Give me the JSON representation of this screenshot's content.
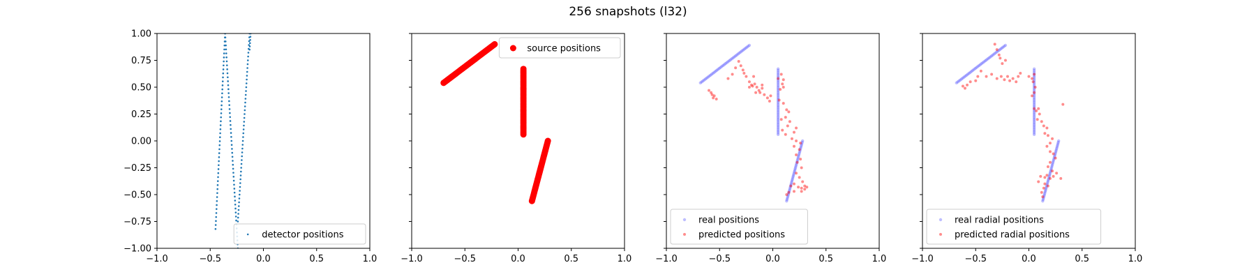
{
  "figure_title": "256 snapshots (l32)",
  "chart_data": [
    {
      "type": "scatter",
      "xlim": [
        -1.0,
        1.0
      ],
      "ylim": [
        -1.0,
        1.0
      ],
      "xticks": [
        "−1.0",
        "−0.5",
        "0.0",
        "0.5",
        "1.0"
      ],
      "xtick_values": [
        -1.0,
        -0.5,
        0.0,
        0.5,
        1.0
      ],
      "yticks": [
        "1.00",
        "0.75",
        "0.50",
        "0.25",
        "0.00",
        "−0.25",
        "−0.50",
        "−0.75",
        "−1.00"
      ],
      "ytick_values": [
        1.0,
        0.75,
        0.5,
        0.25,
        0.0,
        -0.25,
        -0.5,
        -0.75,
        -1.0
      ],
      "show_yticklabels": true,
      "legend_location": "lower-right",
      "series": [
        {
          "name": "detector positions",
          "color": "#1f77b4",
          "opacity": 1.0,
          "marker_radius": 1.3,
          "segments": [
            {
              "x0": -0.45,
              "y0": -0.82,
              "x1": -0.36,
              "y1": 1.0,
              "n": 50
            },
            {
              "x0": -0.36,
              "y0": 1.0,
              "x1": -0.24,
              "y1": -1.0,
              "n": 55
            },
            {
              "x0": -0.24,
              "y0": -0.75,
              "x1": -0.13,
              "y1": 1.0,
              "n": 50
            },
            {
              "x0": -0.13,
              "y0": 0.85,
              "x1": -0.12,
              "y1": 1.0,
              "n": 6
            }
          ]
        }
      ]
    },
    {
      "type": "scatter",
      "xlim": [
        -1.0,
        1.0
      ],
      "ylim": [
        -1.0,
        1.0
      ],
      "xticks": [
        "−1.0",
        "−0.5",
        "0.0",
        "0.5",
        "1.0"
      ],
      "xtick_values": [
        -1.0,
        -0.5,
        0.0,
        0.5,
        1.0
      ],
      "yticks": [],
      "ytick_values": [
        1.0,
        0.75,
        0.5,
        0.25,
        0.0,
        -0.25,
        -0.5,
        -0.75,
        -1.0
      ],
      "show_yticklabels": false,
      "legend_location": "upper-right",
      "series": [
        {
          "name": "source positions",
          "color": "#ff0000",
          "opacity": 1.0,
          "marker_radius": 4.5,
          "segments": [
            {
              "x0": -0.7,
              "y0": 0.54,
              "x1": -0.22,
              "y1": 0.9,
              "n": 50
            },
            {
              "x0": 0.05,
              "y0": 0.67,
              "x1": 0.05,
              "y1": 0.06,
              "n": 45
            },
            {
              "x0": 0.13,
              "y0": -0.56,
              "x1": 0.28,
              "y1": 0.0,
              "n": 45
            }
          ]
        }
      ]
    },
    {
      "type": "scatter",
      "xlim": [
        -1.0,
        1.0
      ],
      "ylim": [
        -1.0,
        1.0
      ],
      "xticks": [
        "−1.0",
        "−0.5",
        "0.0",
        "0.5",
        "1.0"
      ],
      "xtick_values": [
        -1.0,
        -0.5,
        0.0,
        0.5,
        1.0
      ],
      "yticks": [],
      "ytick_values": [
        1.0,
        0.75,
        0.5,
        0.25,
        0.0,
        -0.25,
        -0.5,
        -0.75,
        -1.0
      ],
      "show_yticklabels": false,
      "legend_location": "lower-left",
      "series": [
        {
          "name": "real positions",
          "color": "#4444ff",
          "opacity": 0.35,
          "marker_radius": 2.2,
          "segments": [
            {
              "x0": -0.68,
              "y0": 0.54,
              "x1": -0.22,
              "y1": 0.89,
              "n": 40
            },
            {
              "x0": 0.05,
              "y0": 0.67,
              "x1": 0.05,
              "y1": 0.06,
              "n": 40
            },
            {
              "x0": 0.13,
              "y0": -0.56,
              "x1": 0.28,
              "y1": 0.0,
              "n": 40
            }
          ]
        },
        {
          "name": "predicted positions",
          "color": "#ff0000",
          "opacity": 0.45,
          "marker_radius": 2.0,
          "points": [
            [
              -0.6,
              0.47
            ],
            [
              -0.58,
              0.45
            ],
            [
              -0.55,
              0.42
            ],
            [
              -0.56,
              0.4
            ],
            [
              -0.53,
              0.39
            ],
            [
              -0.57,
              0.43
            ],
            [
              -0.42,
              0.58
            ],
            [
              -0.38,
              0.62
            ],
            [
              -0.35,
              0.68
            ],
            [
              -0.32,
              0.74
            ],
            [
              -0.3,
              0.7
            ],
            [
              -0.28,
              0.66
            ],
            [
              -0.27,
              0.63
            ],
            [
              -0.25,
              0.6
            ],
            [
              -0.22,
              0.55
            ],
            [
              -0.2,
              0.52
            ],
            [
              -0.22,
              0.5
            ],
            [
              -0.19,
              0.51
            ],
            [
              -0.17,
              0.53
            ],
            [
              -0.15,
              0.5
            ],
            [
              -0.13,
              0.47
            ],
            [
              -0.1,
              0.49
            ],
            [
              -0.12,
              0.45
            ],
            [
              -0.08,
              0.43
            ],
            [
              -0.05,
              0.4
            ],
            [
              -0.03,
              0.37
            ],
            [
              -0.02,
              0.42
            ],
            [
              -0.18,
              0.6
            ],
            [
              -0.16,
              0.45
            ],
            [
              -0.1,
              0.52
            ],
            [
              0.05,
              0.58
            ],
            [
              0.08,
              0.62
            ],
            [
              0.1,
              0.57
            ],
            [
              0.1,
              0.5
            ],
            [
              0.09,
              0.53
            ],
            [
              0.07,
              0.48
            ],
            [
              0.06,
              0.38
            ],
            [
              0.1,
              0.35
            ],
            [
              0.13,
              0.29
            ],
            [
              0.15,
              0.27
            ],
            [
              0.12,
              0.22
            ],
            [
              0.16,
              0.18
            ],
            [
              0.14,
              0.14
            ],
            [
              0.08,
              0.2
            ],
            [
              0.09,
              0.1
            ],
            [
              0.12,
              0.06
            ],
            [
              0.2,
              0.08
            ],
            [
              0.22,
              0.12
            ],
            [
              0.18,
              0.02
            ],
            [
              0.22,
              0.0
            ],
            [
              0.26,
              -0.02
            ],
            [
              0.25,
              -0.08
            ],
            [
              0.2,
              -0.05
            ],
            [
              0.22,
              -0.13
            ],
            [
              0.26,
              -0.17
            ],
            [
              0.23,
              -0.2
            ],
            [
              0.27,
              -0.25
            ],
            [
              0.22,
              -0.3
            ],
            [
              0.25,
              -0.34
            ],
            [
              0.28,
              -0.38
            ],
            [
              0.3,
              -0.42
            ],
            [
              0.27,
              -0.44
            ],
            [
              0.24,
              -0.43
            ],
            [
              0.2,
              -0.4
            ],
            [
              0.17,
              -0.42
            ],
            [
              0.3,
              -0.45
            ],
            [
              0.32,
              -0.43
            ],
            [
              0.27,
              -0.47
            ],
            [
              0.15,
              -0.48
            ],
            [
              0.13,
              -0.5
            ],
            [
              0.2,
              -0.47
            ]
          ]
        }
      ]
    },
    {
      "type": "scatter",
      "xlim": [
        -1.0,
        1.0
      ],
      "ylim": [
        -1.0,
        1.0
      ],
      "xticks": [
        "−1.0",
        "−0.5",
        "0.0",
        "0.5",
        "1.0"
      ],
      "xtick_values": [
        -1.0,
        -0.5,
        0.0,
        0.5,
        1.0
      ],
      "yticks": [],
      "ytick_values": [
        1.0,
        0.75,
        0.5,
        0.25,
        0.0,
        -0.25,
        -0.5,
        -0.75,
        -1.0
      ],
      "show_yticklabels": false,
      "legend_location": "lower-left",
      "series": [
        {
          "name": "real radial positions",
          "color": "#4444ff",
          "opacity": 0.35,
          "marker_radius": 2.2,
          "segments": [
            {
              "x0": -0.68,
              "y0": 0.54,
              "x1": -0.22,
              "y1": 0.89,
              "n": 40
            },
            {
              "x0": 0.05,
              "y0": 0.67,
              "x1": 0.05,
              "y1": 0.06,
              "n": 40
            },
            {
              "x0": 0.13,
              "y0": -0.56,
              "x1": 0.28,
              "y1": 0.0,
              "n": 40
            }
          ]
        },
        {
          "name": "predicted radial positions",
          "color": "#ff0000",
          "opacity": 0.45,
          "marker_radius": 2.0,
          "points": [
            [
              -0.32,
              0.9
            ],
            [
              -0.3,
              0.85
            ],
            [
              -0.28,
              0.8
            ],
            [
              -0.27,
              0.77
            ],
            [
              -0.25,
              0.72
            ],
            [
              -0.22,
              0.75
            ],
            [
              -0.45,
              0.65
            ],
            [
              -0.48,
              0.6
            ],
            [
              -0.5,
              0.56
            ],
            [
              -0.55,
              0.55
            ],
            [
              -0.58,
              0.52
            ],
            [
              -0.6,
              0.49
            ],
            [
              -0.62,
              0.51
            ],
            [
              -0.4,
              0.6
            ],
            [
              -0.35,
              0.62
            ],
            [
              -0.3,
              0.58
            ],
            [
              -0.26,
              0.6
            ],
            [
              -0.23,
              0.57
            ],
            [
              -0.2,
              0.6
            ],
            [
              -0.18,
              0.56
            ],
            [
              -0.15,
              0.58
            ],
            [
              -0.12,
              0.55
            ],
            [
              -0.1,
              0.6
            ],
            [
              -0.08,
              0.63
            ],
            [
              0.0,
              0.6
            ],
            [
              0.03,
              0.58
            ],
            [
              0.05,
              0.62
            ],
            [
              0.04,
              0.55
            ],
            [
              0.06,
              0.5
            ],
            [
              0.05,
              0.45
            ],
            [
              0.03,
              0.42
            ],
            [
              0.05,
              0.3
            ],
            [
              0.07,
              0.28
            ],
            [
              0.09,
              0.3
            ],
            [
              0.1,
              0.25
            ],
            [
              0.08,
              0.2
            ],
            [
              0.12,
              0.18
            ],
            [
              0.14,
              0.14
            ],
            [
              0.17,
              0.12
            ],
            [
              0.15,
              0.07
            ],
            [
              0.18,
              0.05
            ],
            [
              0.22,
              0.02
            ],
            [
              0.2,
              -0.02
            ],
            [
              0.17,
              -0.05
            ],
            [
              0.2,
              -0.1
            ],
            [
              0.23,
              -0.12
            ],
            [
              0.25,
              -0.16
            ],
            [
              0.2,
              -0.2
            ],
            [
              0.18,
              -0.24
            ],
            [
              0.22,
              -0.28
            ],
            [
              0.17,
              -0.32
            ],
            [
              0.15,
              -0.34
            ],
            [
              0.2,
              -0.35
            ],
            [
              0.23,
              -0.33
            ],
            [
              0.26,
              -0.3
            ],
            [
              0.3,
              -0.35
            ],
            [
              0.15,
              -0.4
            ],
            [
              0.14,
              -0.44
            ],
            [
              0.18,
              -0.42
            ],
            [
              0.12,
              -0.48
            ],
            [
              0.13,
              -0.52
            ],
            [
              0.32,
              0.34
            ],
            [
              0.09,
              -0.38
            ],
            [
              0.11,
              -0.33
            ]
          ]
        }
      ]
    }
  ]
}
